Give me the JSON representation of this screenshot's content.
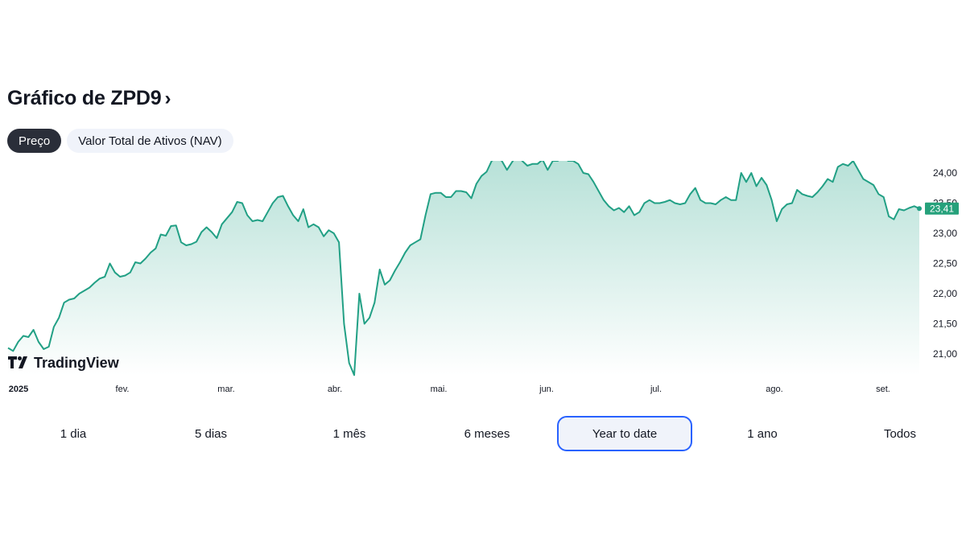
{
  "header": {
    "title": "Gráfico de ZPD9",
    "chevron": "›",
    "tabs": [
      {
        "label": "Preço",
        "active": true
      },
      {
        "label": "Valor Total de Ativos (NAV)",
        "active": false
      }
    ]
  },
  "watermark": {
    "text": "TradingView",
    "icon": "tradingview-logo-icon"
  },
  "colors": {
    "line": "#22a085",
    "fill_top": "#b2dfd5",
    "fill_bottom": "#ffffff",
    "price_badge": "#26a17b",
    "selected_border": "#2962ff"
  },
  "chart_data": {
    "type": "area",
    "ylim": [
      20.6,
      24.2
    ],
    "y_ticks": [
      "24,00",
      "23,50",
      "23,00",
      "22,50",
      "22,00",
      "21,50",
      "21,00"
    ],
    "y_tick_values": [
      24.0,
      23.5,
      23.0,
      22.5,
      22.0,
      21.5,
      21.0
    ],
    "x_ticks": [
      "2025",
      "fev.",
      "mar.",
      "abr.",
      "mai.",
      "jun.",
      "jul.",
      "ago.",
      "set."
    ],
    "last_value_label": "23,41",
    "last_value": 23.41,
    "series": [
      {
        "values": [
          21.1,
          21.05,
          21.2,
          21.3,
          21.28,
          21.4,
          21.2,
          21.08,
          21.12,
          21.45,
          21.6,
          21.85,
          21.9,
          21.92,
          22.0,
          22.05,
          22.1,
          22.18,
          22.25,
          22.28,
          22.5,
          22.35,
          22.28,
          22.3,
          22.35,
          22.52,
          22.5,
          22.58,
          22.68,
          22.75,
          22.98,
          22.96,
          23.12,
          23.13,
          22.85,
          22.8,
          22.82,
          22.86,
          23.02,
          23.1,
          23.02,
          22.92,
          23.15,
          23.25,
          23.35,
          23.52,
          23.5,
          23.3,
          23.2,
          23.22,
          23.2,
          23.35,
          23.5,
          23.6,
          23.62,
          23.45,
          23.3,
          23.2,
          23.4,
          23.1,
          23.15,
          23.1,
          22.95,
          23.05,
          23.0,
          22.85,
          21.5,
          20.85,
          20.65,
          22.0,
          21.5,
          21.6,
          21.85,
          22.4,
          22.15,
          22.22,
          22.38,
          22.52,
          22.68,
          22.8,
          22.85,
          22.9,
          23.3,
          23.65,
          23.67,
          23.67,
          23.6,
          23.6,
          23.7,
          23.7,
          23.68,
          23.58,
          23.82,
          23.95,
          24.02,
          24.2,
          24.25,
          24.2,
          24.05,
          24.18,
          24.3,
          24.2,
          24.12,
          24.15,
          24.15,
          24.22,
          24.05,
          24.2,
          24.2,
          24.3,
          24.2,
          24.2,
          24.15,
          24.0,
          23.98,
          23.85,
          23.7,
          23.55,
          23.45,
          23.38,
          23.42,
          23.35,
          23.45,
          23.3,
          23.35,
          23.5,
          23.55,
          23.5,
          23.5,
          23.52,
          23.55,
          23.5,
          23.48,
          23.5,
          23.65,
          23.75,
          23.55,
          23.5,
          23.5,
          23.48,
          23.55,
          23.6,
          23.55,
          23.55,
          24.0,
          23.85,
          24.0,
          23.78,
          23.92,
          23.8,
          23.55,
          23.2,
          23.4,
          23.48,
          23.5,
          23.72,
          23.65,
          23.62,
          23.6,
          23.68,
          23.78,
          23.9,
          23.85,
          24.1,
          24.15,
          24.12,
          24.2,
          24.05,
          23.9,
          23.85,
          23.8,
          23.65,
          23.6,
          23.28,
          23.23,
          23.4,
          23.38,
          23.42,
          23.45,
          23.41
        ]
      }
    ]
  },
  "ranges": [
    {
      "label": "1 dia",
      "selected": false
    },
    {
      "label": "5 dias",
      "selected": false
    },
    {
      "label": "1 mês",
      "selected": false
    },
    {
      "label": "6 meses",
      "selected": false
    },
    {
      "label": "Year to date",
      "selected": true
    },
    {
      "label": "1 ano",
      "selected": false
    },
    {
      "label": "Todos",
      "selected": false
    }
  ]
}
